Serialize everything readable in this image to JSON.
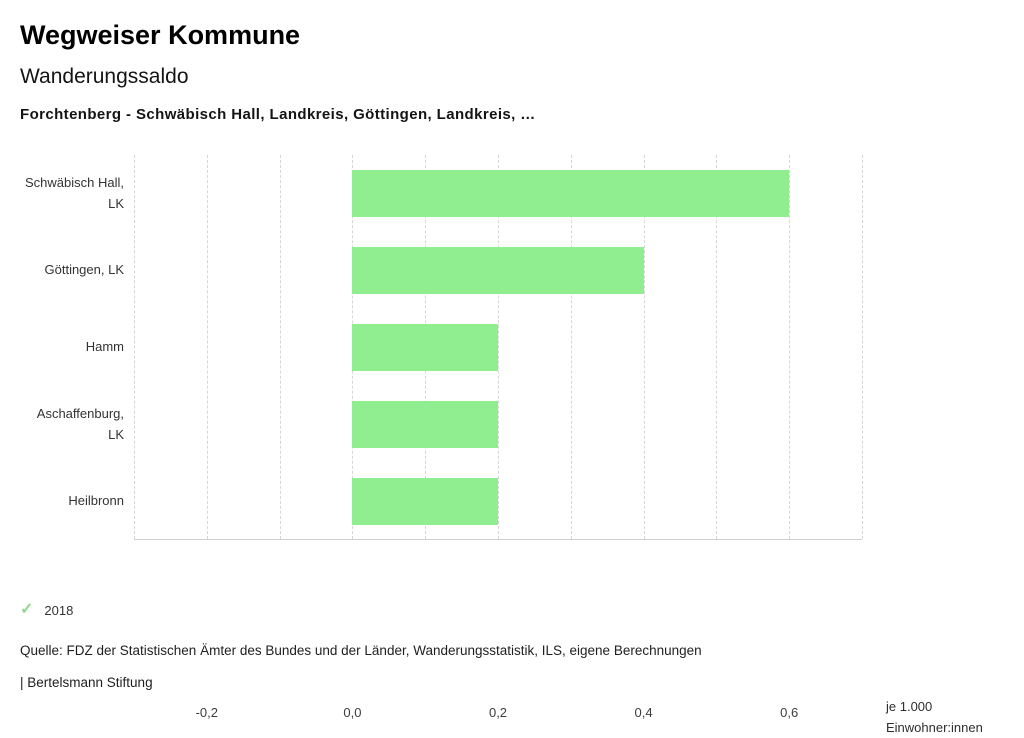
{
  "header": {
    "app_title": "Wegweiser Kommune",
    "indicator_title": "Wanderungssaldo",
    "selection_subtitle": "Forchtenberg - Schwäbisch Hall, Landkreis, Göttingen, Landkreis, …"
  },
  "chart_data": {
    "type": "bar",
    "orientation": "horizontal",
    "title": "Wanderungssaldo",
    "categories": [
      "Schwäbisch Hall, LK",
      "Göttingen, LK",
      "Hamm",
      "Aschaffenburg, LK",
      "Heilbronn"
    ],
    "values": [
      0.6,
      0.4,
      0.2,
      0.2,
      0.2
    ],
    "series_name": "2018",
    "xlim": [
      -0.3,
      0.7
    ],
    "gridlines": [
      -0.3,
      -0.2,
      -0.1,
      0,
      0.1,
      0.2,
      0.3,
      0.4,
      0.5,
      0.6,
      0.7
    ],
    "x_ticks": [
      {
        "value": -0.2,
        "label": "-0,2"
      },
      {
        "value": 0.0,
        "label": "0,0"
      },
      {
        "value": 0.2,
        "label": "0,2"
      },
      {
        "value": 0.4,
        "label": "0,4"
      },
      {
        "value": 0.6,
        "label": "0,6"
      }
    ],
    "unit_label_line1": "je 1.000",
    "unit_label_line2": "Einwohner:innen",
    "bar_color": "#90ee90",
    "gridline_color": "#d6d6d6",
    "grid": "dashed-vertical",
    "legend_position": "bottom-left"
  },
  "legend": {
    "check_glyph": "✓",
    "check_color": "#8fd98f",
    "label": "2018"
  },
  "footer": {
    "source": "Quelle: FDZ der Statistischen Ämter des Bundes und der Länder, Wanderungsstatistik, ILS, eigene Berechnungen",
    "attribution": "| Bertelsmann Stiftung"
  }
}
